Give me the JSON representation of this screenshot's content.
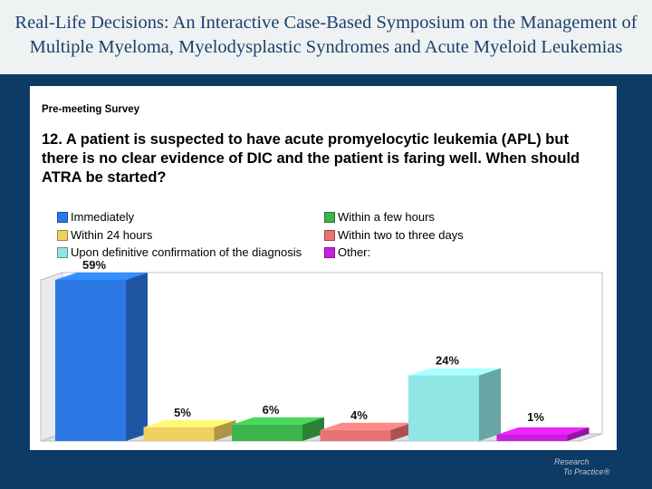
{
  "header": {
    "title_line1": "Real-Life Decisions: An Interactive Case-Based Symposium on the Management of",
    "title_line2": "Multiple Myeloma, Myelodysplastic Syndromes and Acute Myeloid Leukemias"
  },
  "logo": {
    "line1": "Research",
    "line2": "To Practice®"
  },
  "chart_data": {
    "type": "bar",
    "title": "Pre-meeting Survey",
    "question": "12. A patient is suspected to have acute promyelocytic leukemia (APL) but there is no clear evidence of DIC and the patient is faring well. When should ATRA be started?",
    "categories": [
      "Immediately",
      "Within 24 hours",
      "Upon definitive confirmation of the diagnosis",
      "Within a few hours",
      "Within two to three days",
      "Other:"
    ],
    "values": [
      59,
      5,
      24,
      6,
      4,
      1
    ],
    "value_labels": [
      "59%",
      "5%",
      "24%",
      "6%",
      "4%",
      "1%"
    ],
    "bar_order": [
      0,
      1,
      3,
      4,
      2,
      5
    ],
    "colors": [
      "#2b78e4",
      "#f0d060",
      "#8fe6e4",
      "#3cb44b",
      "#e97371",
      "#c81ee0"
    ],
    "ylim": [
      0,
      59
    ],
    "legend_position": "top",
    "grid": false
  }
}
